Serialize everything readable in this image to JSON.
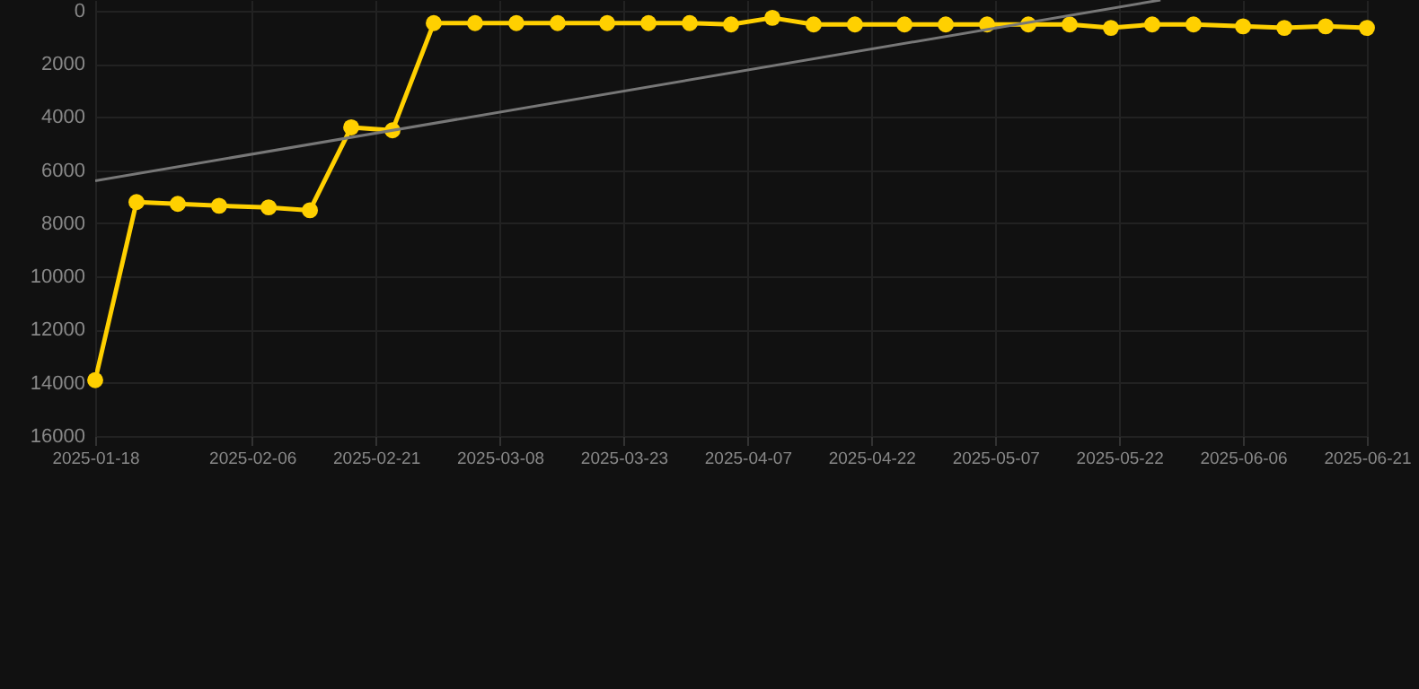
{
  "chart_data": {
    "type": "line",
    "x": [
      "2025-01-18",
      "2025-01-23",
      "2025-01-28",
      "2025-02-02",
      "2025-02-08",
      "2025-02-13",
      "2025-02-18",
      "2025-02-23",
      "2025-02-28",
      "2025-03-05",
      "2025-03-10",
      "2025-03-15",
      "2025-03-21",
      "2025-03-26",
      "2025-03-31",
      "2025-04-05",
      "2025-04-10",
      "2025-04-15",
      "2025-04-20",
      "2025-04-26",
      "2025-05-01",
      "2025-05-06",
      "2025-05-11",
      "2025-05-16",
      "2025-05-21",
      "2025-05-26",
      "2025-05-31",
      "2025-06-06",
      "2025-06-11",
      "2025-06-16",
      "2025-06-21"
    ],
    "series": [
      {
        "color": "#ffd000",
        "marker": "circle",
        "values": [
          13900,
          7200,
          7270,
          7340,
          7400,
          7510,
          4390,
          4500,
          470,
          470,
          470,
          470,
          470,
          470,
          470,
          520,
          270,
          520,
          520,
          520,
          520,
          520,
          520,
          520,
          650,
          520,
          520,
          590,
          650,
          590,
          650
        ]
      },
      {
        "type": "line",
        "color": "#777777",
        "marker": "none",
        "x": [
          "2025-01-18",
          "2025-05-27"
        ],
        "values": [
          6400,
          -400
        ]
      }
    ],
    "xlim": [
      "2025-01-18",
      "2025-06-21"
    ],
    "xticks": [
      "2025-01-18",
      "2025-02-06",
      "2025-02-21",
      "2025-03-08",
      "2025-03-23",
      "2025-04-07",
      "2025-04-22",
      "2025-05-07",
      "2025-05-22",
      "2025-06-06",
      "2025-06-21"
    ],
    "ylim": [
      16000,
      -400
    ],
    "yticks": [
      0,
      2000,
      4000,
      6000,
      8000,
      10000,
      12000,
      14000,
      16000
    ],
    "grid": true
  }
}
